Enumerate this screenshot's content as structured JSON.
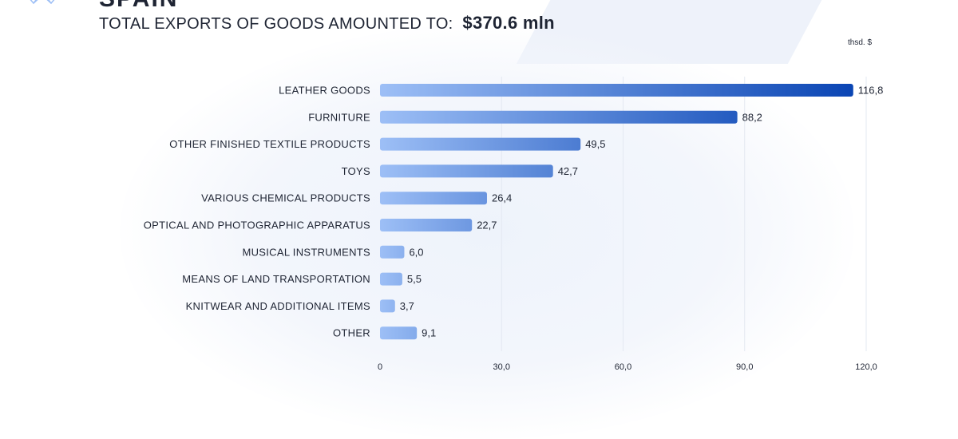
{
  "header": {
    "country": "SPAIN",
    "headline_label": "TOTAL EXPORTS OF GOODS AMOUNTED TO:",
    "headline_value": "$370.6 mln"
  },
  "colors": {
    "bar_light": "#9dbff6",
    "bar_dark": "#0a45b4",
    "text": "#1e2433",
    "grid": "#e3e8f1"
  },
  "chart_data": {
    "type": "bar",
    "orientation": "horizontal",
    "unit_label": "thsd. $",
    "categories": [
      "LEATHER GOODS",
      "FURNITURE",
      "OTHER FINISHED TEXTILE PRODUCTS",
      "TOYS",
      "VARIOUS CHEMICAL PRODUCTS",
      "OPTICAL AND PHOTOGRAPHIC APPARATUS",
      "MUSICAL INSTRUMENTS",
      "MEANS OF LAND TRANSPORTATION",
      "KNITWEAR AND ADDITIONAL ITEMS",
      "OTHER"
    ],
    "values": [
      116.8,
      88.2,
      49.5,
      42.7,
      26.4,
      22.7,
      6.0,
      5.5,
      3.7,
      9.1
    ],
    "value_labels": [
      "116,8",
      "88,2",
      "49,5",
      "42,7",
      "26,4",
      "22,7",
      "6,0",
      "5,5",
      "3,7",
      "9,1"
    ],
    "xlim": [
      0,
      120
    ],
    "x_ticks": [
      0,
      30,
      60,
      90,
      120
    ],
    "x_tick_labels": [
      "0",
      "30,0",
      "60,0",
      "90,0",
      "120,0"
    ],
    "grid": true,
    "legend": "none"
  }
}
